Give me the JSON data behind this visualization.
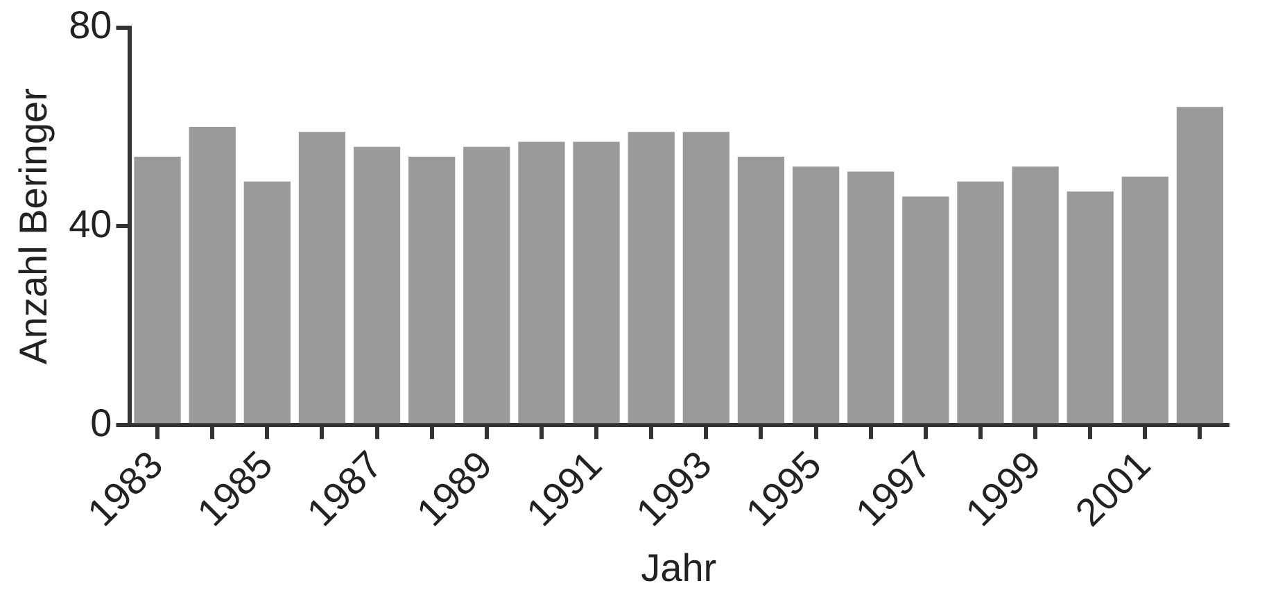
{
  "chart_data": {
    "type": "bar",
    "xlabel": "Jahr",
    "ylabel": "Anzahl Beringer",
    "categories": [
      "1983",
      null,
      "1985",
      null,
      "1987",
      null,
      "1989",
      null,
      "1991",
      null,
      "1993",
      null,
      "1995",
      null,
      "1997",
      null,
      "1999",
      null,
      "2001",
      null
    ],
    "values": [
      54,
      60,
      49,
      59,
      56,
      54,
      56,
      57,
      57,
      59,
      59,
      54,
      52,
      51,
      46,
      49,
      52,
      47,
      50,
      64
    ],
    "color": "#9a9a9a",
    "ylim": [
      0,
      80
    ],
    "yticks": [
      0,
      40,
      80
    ]
  }
}
